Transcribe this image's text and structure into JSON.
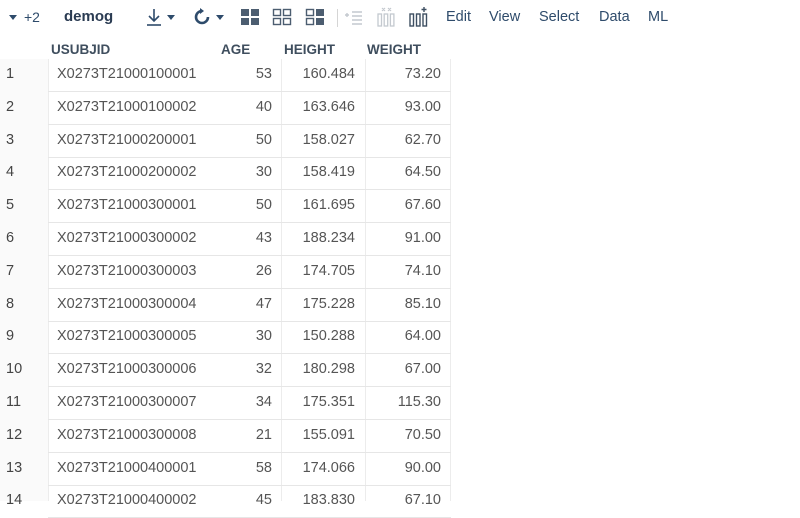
{
  "toolbar": {
    "count_label": "+2",
    "title": "demog",
    "menus": [
      "Edit",
      "View",
      "Select",
      "Data",
      "ML"
    ]
  },
  "grid": {
    "columns": [
      "USUBJID",
      "AGE",
      "HEIGHT",
      "WEIGHT"
    ],
    "rows": [
      {
        "index": "1",
        "usubjid": "X0273T21000100001",
        "age": "53",
        "height": "160.484",
        "weight": "73.20"
      },
      {
        "index": "2",
        "usubjid": "X0273T21000100002",
        "age": "40",
        "height": "163.646",
        "weight": "93.00"
      },
      {
        "index": "3",
        "usubjid": "X0273T21000200001",
        "age": "50",
        "height": "158.027",
        "weight": "62.70"
      },
      {
        "index": "4",
        "usubjid": "X0273T21000200002",
        "age": "30",
        "height": "158.419",
        "weight": "64.50"
      },
      {
        "index": "5",
        "usubjid": "X0273T21000300001",
        "age": "50",
        "height": "161.695",
        "weight": "67.60"
      },
      {
        "index": "6",
        "usubjid": "X0273T21000300002",
        "age": "43",
        "height": "188.234",
        "weight": "91.00"
      },
      {
        "index": "7",
        "usubjid": "X0273T21000300003",
        "age": "26",
        "height": "174.705",
        "weight": "74.10"
      },
      {
        "index": "8",
        "usubjid": "X0273T21000300004",
        "age": "47",
        "height": "175.228",
        "weight": "85.10"
      },
      {
        "index": "9",
        "usubjid": "X0273T21000300005",
        "age": "30",
        "height": "150.288",
        "weight": "64.00"
      },
      {
        "index": "10",
        "usubjid": "X0273T21000300006",
        "age": "32",
        "height": "180.298",
        "weight": "67.00"
      },
      {
        "index": "11",
        "usubjid": "X0273T21000300007",
        "age": "34",
        "height": "175.351",
        "weight": "115.30"
      },
      {
        "index": "12",
        "usubjid": "X0273T21000300008",
        "age": "21",
        "height": "155.091",
        "weight": "70.50"
      },
      {
        "index": "13",
        "usubjid": "X0273T21000400001",
        "age": "58",
        "height": "174.066",
        "weight": "90.00"
      },
      {
        "index": "14",
        "usubjid": "X0273T21000400002",
        "age": "45",
        "height": "183.830",
        "weight": "67.10"
      }
    ]
  },
  "icons": {
    "collapse": "caret-down-icon",
    "download": "download-icon",
    "refresh": "refresh-icon",
    "layout_a": "layout-grid-icon",
    "layout_b": "layout-split-icon",
    "layout_c": "layout-columns-icon",
    "add_row": "add-rows-icon",
    "delete_cols": "delete-columns-icon",
    "add_cols": "add-columns-icon"
  }
}
